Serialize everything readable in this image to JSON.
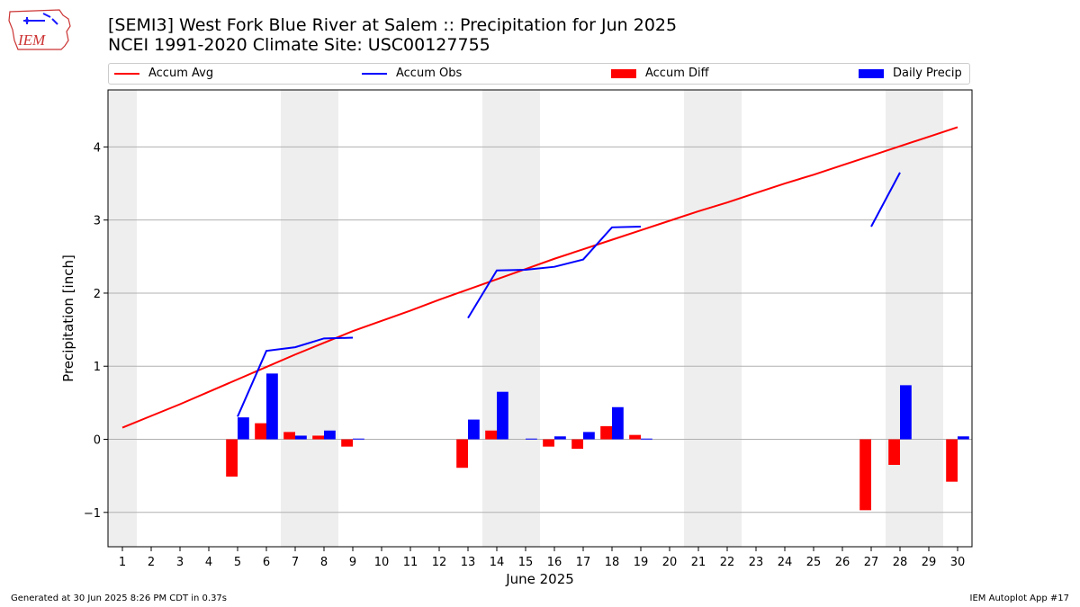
{
  "header": {
    "title_line1": "[SEMI3] West Fork Blue River at Salem :: Precipitation for Jun 2025",
    "title_line2": "NCEI 1991-2020 Climate Site: USC00127755"
  },
  "logo": {
    "text": "IEM"
  },
  "footer": {
    "generated": "Generated at 30 Jun 2025 8:26 PM CDT in 0.37s",
    "app": "IEM Autoplot App #17"
  },
  "chart_data": {
    "type": "bar",
    "xlabel": "June 2025",
    "ylabel": "Precipitation [inch]",
    "ylim": [
      -1.47,
      4.78
    ],
    "xlim": [
      0.5,
      30.5
    ],
    "yticks": [
      -1,
      0,
      1,
      2,
      3,
      4
    ],
    "ytick_labels": [
      "−1",
      "0",
      "1",
      "2",
      "3",
      "4"
    ],
    "categories": [
      1,
      2,
      3,
      4,
      5,
      6,
      7,
      8,
      9,
      10,
      11,
      12,
      13,
      14,
      15,
      16,
      17,
      18,
      19,
      20,
      21,
      22,
      23,
      24,
      25,
      26,
      27,
      28,
      29,
      30
    ],
    "grid": "horizontal",
    "legend_placement": "top",
    "weekend_shading": [
      [
        0.5,
        1.5
      ],
      [
        6.5,
        8.5
      ],
      [
        13.5,
        15.5
      ],
      [
        20.5,
        22.5
      ],
      [
        27.5,
        29.5
      ]
    ],
    "colors": {
      "avg": "#ff0000",
      "obs": "#0000ff",
      "diff": "#ff0000",
      "daily": "#0000ff",
      "shade": "#eeeeee",
      "grid": "#b0b0b0"
    },
    "series": [
      {
        "name": "Accum Avg",
        "kind": "line",
        "x": [
          1,
          2,
          3,
          4,
          5,
          6,
          7,
          8,
          9,
          10,
          11,
          12,
          13,
          14,
          15,
          16,
          17,
          18,
          19,
          20,
          21,
          22,
          23,
          24,
          25,
          26,
          27,
          28,
          29,
          30
        ],
        "values": [
          0.16,
          0.32,
          0.48,
          0.65,
          0.82,
          0.99,
          1.16,
          1.32,
          1.48,
          1.62,
          1.76,
          1.91,
          2.05,
          2.19,
          2.33,
          2.47,
          2.6,
          2.73,
          2.86,
          2.99,
          3.12,
          3.24,
          3.37,
          3.5,
          3.62,
          3.75,
          3.88,
          4.01,
          4.14,
          4.27
        ]
      },
      {
        "name": "Accum Obs",
        "kind": "line",
        "segments": [
          {
            "x": [
              5,
              6,
              7,
              8,
              9
            ],
            "values": [
              0.31,
              1.21,
              1.26,
              1.38,
              1.39
            ]
          },
          {
            "x": [
              13,
              14,
              15,
              16,
              17,
              18,
              19
            ],
            "values": [
              1.66,
              2.31,
              2.32,
              2.36,
              2.46,
              2.9,
              2.91
            ]
          },
          {
            "x": [
              27,
              28
            ],
            "values": [
              2.91,
              3.65
            ]
          }
        ]
      },
      {
        "name": "Accum Diff",
        "kind": "bar",
        "x": [
          5,
          6,
          7,
          8,
          9,
          13,
          14,
          16,
          17,
          18,
          19,
          27,
          28,
          30
        ],
        "values": [
          -0.51,
          0.22,
          0.1,
          0.05,
          -0.1,
          -0.39,
          0.12,
          -0.1,
          -0.13,
          0.18,
          0.06,
          -0.97,
          -0.35,
          -0.58
        ]
      },
      {
        "name": "Daily Precip",
        "kind": "bar",
        "x": [
          5,
          6,
          7,
          8,
          9,
          13,
          14,
          15,
          16,
          17,
          18,
          19,
          28,
          30
        ],
        "values": [
          0.3,
          0.9,
          0.05,
          0.12,
          0.01,
          0.27,
          0.65,
          0.01,
          0.04,
          0.1,
          0.44,
          0.01,
          0.74,
          0.04
        ]
      }
    ]
  }
}
